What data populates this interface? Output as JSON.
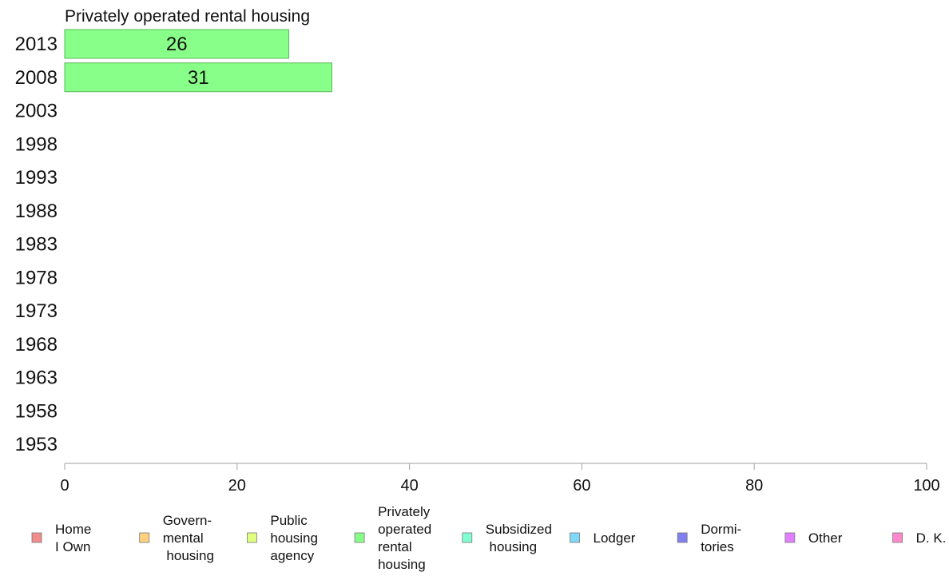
{
  "chart_data": {
    "type": "bar",
    "orientation": "horizontal",
    "title": "Privately operated rental housing",
    "categories": [
      "2013",
      "2008",
      "2003",
      "1998",
      "1993",
      "1988",
      "1983",
      "1978",
      "1973",
      "1968",
      "1963",
      "1958",
      "1953"
    ],
    "series": [
      {
        "name": "Privately operated rental housing",
        "color": "#88ff88",
        "values": [
          26,
          31,
          null,
          null,
          null,
          null,
          null,
          null,
          null,
          null,
          null,
          null,
          null
        ]
      }
    ],
    "xlim": [
      0,
      100
    ],
    "xticks": [
      0,
      20,
      40,
      60,
      80,
      100
    ],
    "xlabel": "",
    "ylabel": "",
    "grid": false,
    "legend_position": "bottom",
    "legend": [
      {
        "lines": [
          "Home",
          "I Own"
        ],
        "color": "#f08c8c"
      },
      {
        "lines": [
          "Govern-",
          "mental",
          " housing"
        ],
        "color": "#ffd080"
      },
      {
        "lines": [
          "Public",
          "housing",
          "agency"
        ],
        "color": "#e0ff80"
      },
      {
        "lines": [
          "Privately",
          "operated",
          "rental",
          "housing"
        ],
        "color": "#88ff88"
      },
      {
        "lines": [
          "Subsidized",
          " housing"
        ],
        "color": "#80ffd0"
      },
      {
        "lines": [
          "Lodger"
        ],
        "color": "#80d8f8"
      },
      {
        "lines": [
          "Dormi-",
          "tories"
        ],
        "color": "#8080f0"
      },
      {
        "lines": [
          "Other"
        ],
        "color": "#e080ff"
      },
      {
        "lines": [
          "D. K."
        ],
        "color": "#ff88cc"
      }
    ]
  }
}
